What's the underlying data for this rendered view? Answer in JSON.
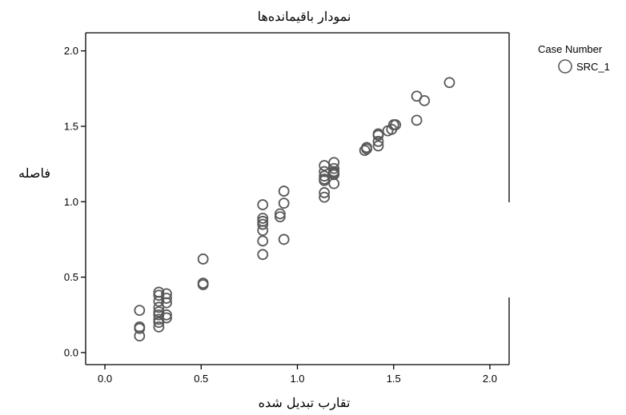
{
  "chart_data": {
    "type": "scatter",
    "title": "نمودار باقیمانده‌ها",
    "xlabel": "تقارب تبدیل شده",
    "ylabel": "فاصله",
    "xlim": [
      -0.1,
      2.1
    ],
    "ylim": [
      -0.08,
      2.12
    ],
    "x_ticks": [
      0.0,
      0.5,
      1.0,
      1.5,
      2.0
    ],
    "x_tick_labels": [
      "0.0",
      "0.5",
      "1.0",
      "1.5",
      "2.0"
    ],
    "y_ticks": [
      0.0,
      0.5,
      1.0,
      1.5,
      2.0
    ],
    "y_tick_labels": [
      "0.0",
      "0.5",
      "1.0",
      "1.5",
      "2.0"
    ],
    "grid": false,
    "legend": {
      "title": "Case Number",
      "placement": "right",
      "entries": [
        {
          "label": "SRC_1",
          "marker": "open-circle"
        }
      ]
    },
    "marker_color": "#595959",
    "series": [
      {
        "name": "SRC_1",
        "points": [
          [
            0.18,
            0.28
          ],
          [
            0.18,
            0.17
          ],
          [
            0.18,
            0.16
          ],
          [
            0.18,
            0.11
          ],
          [
            0.28,
            0.4
          ],
          [
            0.28,
            0.38
          ],
          [
            0.28,
            0.34
          ],
          [
            0.28,
            0.3
          ],
          [
            0.28,
            0.27
          ],
          [
            0.28,
            0.25
          ],
          [
            0.28,
            0.22
          ],
          [
            0.28,
            0.2
          ],
          [
            0.28,
            0.17
          ],
          [
            0.32,
            0.39
          ],
          [
            0.32,
            0.36
          ],
          [
            0.32,
            0.33
          ],
          [
            0.32,
            0.25
          ],
          [
            0.32,
            0.23
          ],
          [
            0.51,
            0.62
          ],
          [
            0.51,
            0.46
          ],
          [
            0.51,
            0.45
          ],
          [
            0.82,
            0.98
          ],
          [
            0.82,
            0.89
          ],
          [
            0.82,
            0.87
          ],
          [
            0.82,
            0.85
          ],
          [
            0.82,
            0.81
          ],
          [
            0.82,
            0.74
          ],
          [
            0.82,
            0.65
          ],
          [
            0.91,
            0.92
          ],
          [
            0.91,
            0.9
          ],
          [
            0.93,
            1.07
          ],
          [
            0.93,
            0.99
          ],
          [
            0.93,
            0.75
          ],
          [
            1.14,
            1.24
          ],
          [
            1.14,
            1.2
          ],
          [
            1.14,
            1.17
          ],
          [
            1.14,
            1.15
          ],
          [
            1.14,
            1.14
          ],
          [
            1.14,
            1.06
          ],
          [
            1.14,
            1.03
          ],
          [
            1.19,
            1.26
          ],
          [
            1.19,
            1.22
          ],
          [
            1.19,
            1.2
          ],
          [
            1.19,
            1.19
          ],
          [
            1.19,
            1.18
          ],
          [
            1.19,
            1.12
          ],
          [
            1.35,
            1.34
          ],
          [
            1.36,
            1.35
          ],
          [
            1.36,
            1.36
          ],
          [
            1.42,
            1.45
          ],
          [
            1.42,
            1.44
          ],
          [
            1.42,
            1.4
          ],
          [
            1.42,
            1.37
          ],
          [
            1.47,
            1.47
          ],
          [
            1.49,
            1.48
          ],
          [
            1.5,
            1.51
          ],
          [
            1.51,
            1.51
          ],
          [
            1.62,
            1.7
          ],
          [
            1.62,
            1.54
          ],
          [
            1.66,
            1.67
          ],
          [
            1.79,
            1.79
          ]
        ]
      }
    ]
  }
}
